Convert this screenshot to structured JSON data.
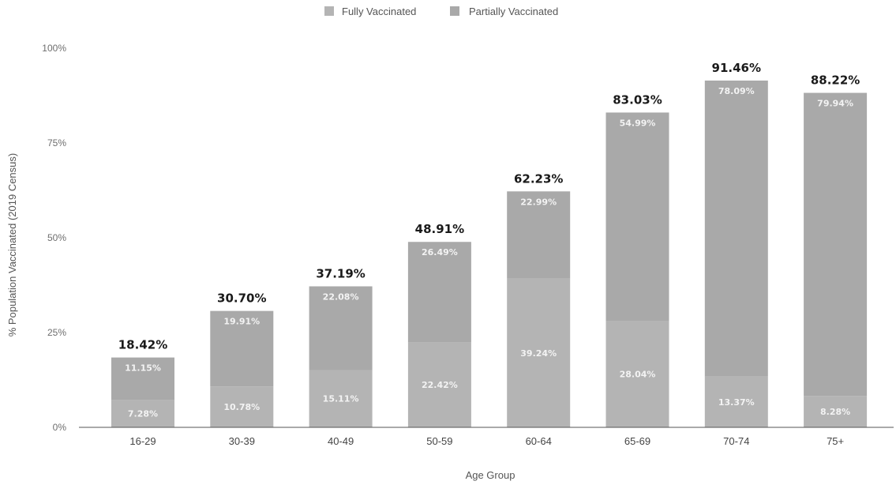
{
  "chart_data": {
    "type": "bar",
    "stacked": true,
    "categories": [
      "16-29",
      "30-39",
      "40-49",
      "50-59",
      "60-64",
      "65-69",
      "70-74",
      "75+"
    ],
    "series": [
      {
        "name": "Fully Vaccinated",
        "values": [
          7.28,
          10.78,
          15.11,
          22.42,
          39.24,
          28.04,
          13.37,
          8.28
        ],
        "labels": [
          "7.28%",
          "10.78%",
          "15.11%",
          "22.42%",
          "39.24%",
          "28.04%",
          "13.37%",
          "8.28%"
        ]
      },
      {
        "name": "Partially Vaccinated",
        "values": [
          11.15,
          19.91,
          22.08,
          26.49,
          22.99,
          54.99,
          78.09,
          79.94
        ],
        "labels": [
          "11.15%",
          "19.91%",
          "22.08%",
          "26.49%",
          "22.99%",
          "54.99%",
          "78.09%",
          "79.94%"
        ]
      }
    ],
    "totals": [
      "18.42%",
      "30.70%",
      "37.19%",
      "48.91%",
      "62.23%",
      "83.03%",
      "91.46%",
      "88.22%"
    ],
    "total_values": [
      18.42,
      30.7,
      37.19,
      48.91,
      62.23,
      83.03,
      91.46,
      88.22
    ],
    "xlabel": "Age Group",
    "ylabel": "% Population Vaccinated (2019 Census)",
    "ylim": [
      0,
      100
    ],
    "yticks": [
      "0%",
      "25%",
      "50%",
      "75%",
      "100%"
    ],
    "ytick_values": [
      0,
      25,
      50,
      75,
      100
    ],
    "grid": false,
    "legend_position": "top-center",
    "colors": {
      "fully": "#b4b4b4",
      "partially": "#a9a9a9",
      "axis": "#555555"
    }
  }
}
